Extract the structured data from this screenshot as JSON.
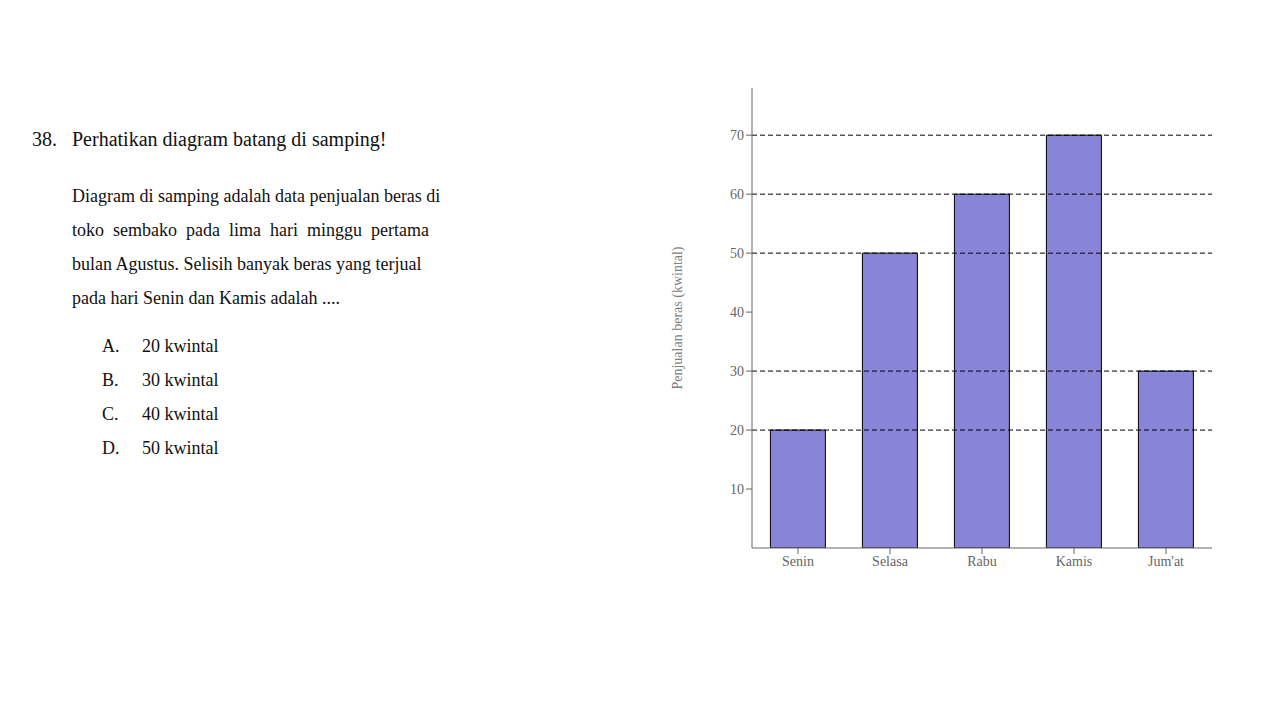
{
  "chart_data": {
    "type": "bar",
    "title": "Perhatikan diagram batang di samping!",
    "annotations": [
      "38.",
      "Diagram di samping adalah data penjualan beras di",
      "toko  sembako  pada  lima  hari  minggu  pertama",
      "bulan Agustus. Selisih banyak beras yang terjual",
      "pada hari Senin dan Kamis adalah ....",
      "A.",
      "20 kwintal",
      "B.",
      "30 kwintal",
      "C.",
      "40 kwintal",
      "D.",
      "50 kwintal"
    ],
    "categories": [
      "Senin",
      "Selasa",
      "Rabu",
      "Kamis",
      "Jum'at"
    ],
    "values": [
      20,
      50,
      60,
      70,
      30
    ],
    "color": "#8884d8",
    "ylabel": "Penjualan beras (kwintal)",
    "ylim": [
      0,
      78
    ],
    "yticks": [
      10,
      20,
      30,
      40,
      50,
      60,
      70
    ],
    "reference_lines": [
      20,
      30,
      50,
      60,
      70
    ],
    "grid": false
  }
}
